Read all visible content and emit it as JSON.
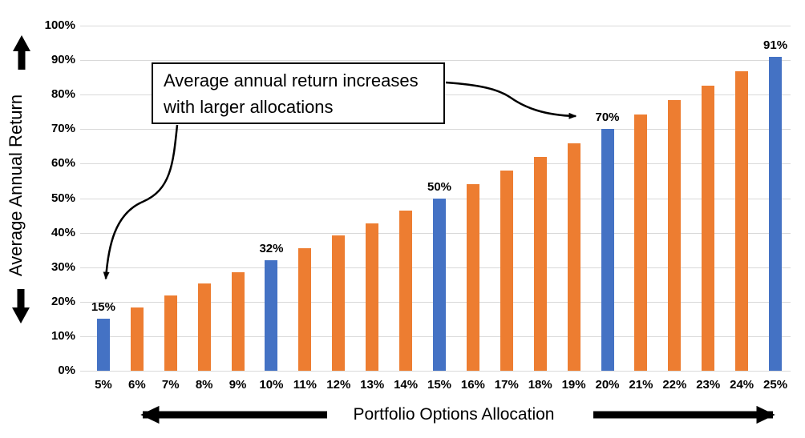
{
  "chart_data": {
    "type": "bar",
    "title": "",
    "xlabel": "Portfolio Options Allocation",
    "ylabel": "Average Annual Return",
    "categories": [
      "5%",
      "6%",
      "7%",
      "8%",
      "9%",
      "10%",
      "11%",
      "12%",
      "13%",
      "14%",
      "15%",
      "16%",
      "17%",
      "18%",
      "19%",
      "20%",
      "21%",
      "22%",
      "23%",
      "24%",
      "25%"
    ],
    "values": [
      15,
      18.4,
      21.8,
      25.2,
      28.6,
      32,
      35.6,
      39.2,
      42.8,
      46.4,
      50,
      54,
      58,
      62,
      66,
      70,
      74.2,
      78.4,
      82.6,
      86.8,
      91
    ],
    "data_labels": [
      "15%",
      "",
      "",
      "",
      "",
      "32%",
      "",
      "",
      "",
      "",
      "50%",
      "",
      "",
      "",
      "",
      "70%",
      "",
      "",
      "",
      "",
      "91%"
    ],
    "highlighted_indices": [
      0,
      5,
      10,
      15,
      20
    ],
    "bar_color": "#ED7D31",
    "highlight_color": "#4472C4",
    "ylim": [
      0,
      100
    ],
    "grid": true,
    "gridline_color": "#D9D9D9",
    "legend": "none",
    "yticks": [
      {
        "value": 0,
        "label": "0%"
      },
      {
        "value": 10,
        "label": "10%"
      },
      {
        "value": 20,
        "label": "20%"
      },
      {
        "value": 30,
        "label": "30%"
      },
      {
        "value": 40,
        "label": "40%"
      },
      {
        "value": 50,
        "label": "50%"
      },
      {
        "value": 60,
        "label": "60%"
      },
      {
        "value": 70,
        "label": "70%"
      },
      {
        "value": 80,
        "label": "80%"
      },
      {
        "value": 90,
        "label": "90%"
      },
      {
        "value": 100,
        "label": "100%"
      }
    ],
    "annotation": "Average annual return increases with larger allocations"
  },
  "annotation": {
    "text": "Average annual return increases with larger allocations"
  }
}
